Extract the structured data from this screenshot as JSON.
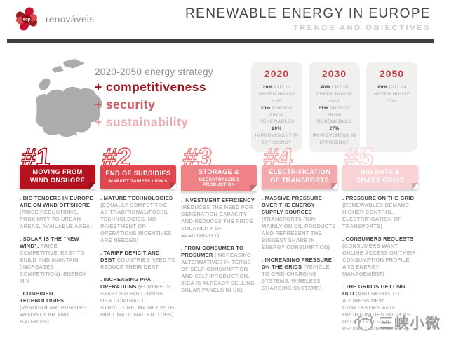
{
  "header": {
    "brand": "edp",
    "brand_name": "renováveis",
    "title": "RENEWABLE ENERGY IN EUROPE",
    "subtitle": "TRENDS AND OBIECTIVES"
  },
  "strategy": {
    "heading": "2020-2050 energy strategy",
    "goals": [
      {
        "label": "+ competitiveness",
        "color": "#9f1620"
      },
      {
        "label": "+ security",
        "color": "#cf5b62"
      },
      {
        "label": "+ sustainability",
        "color": "#edabaf"
      }
    ]
  },
  "milestones": [
    {
      "year": "2020",
      "facts": [
        {
          "value": "20%",
          "text": " CUT IN GREEN HOUSE GAS"
        },
        {
          "value": "20%",
          "text": " ENERGY FROM RENEWABLES"
        },
        {
          "value": "20%",
          "text": " IMPROVEMENT IN EFFICIENCY"
        }
      ]
    },
    {
      "year": "2030",
      "facts": [
        {
          "value": "40%",
          "text": " CUT IN GREEN HOUSE GAS"
        },
        {
          "value": "27%",
          "text": " ENERGY FROM RENEWABLES"
        },
        {
          "value": "27%",
          "text": " IMPROVEMENT IN EFFICIENCY"
        }
      ]
    },
    {
      "year": "2050",
      "facts": [
        {
          "value": "80%",
          "text": " CUT IN GREEN HOUSE GAS"
        }
      ]
    }
  ],
  "trends": [
    {
      "number": "#1",
      "color": "#b5121f",
      "title_lines": [
        "MOVING FROM",
        "WIND ONSHORE"
      ],
      "subtitle_lines": [],
      "items": [
        {
          "lead": ". BIG TENDERS IN EUROPE ARE ON WIND OFFSHORE ",
          "rest": "(PRICE REDUCTIONS, PROXIMITY TO URBAN AREAS, AVAILABLE AREA)"
        },
        {
          "lead": ". SOLAR IS THE “NEW WIND”. ",
          "rest": "PRICE COMPETITIVE, EASY TO BUILD AND MAINTAIN (INCREASES COMPETITION), ENERGY MIX"
        },
        {
          "lead": ". COMBINED TECHNOLOGIES ",
          "rest": "(WIND/SOLAR; PUMPING WIND/SOLAR AND BATERIES)"
        }
      ]
    },
    {
      "number": "#2",
      "color": "#e0474f",
      "title_lines": [
        "END OF SUBSIDIES"
      ],
      "subtitle_lines": [
        "MARKET TARIFFS / PPAS"
      ],
      "items": [
        {
          "lead": ". MATURE TECHNOLOGIES ",
          "rest": "(EQUALLY COMPETITIVE AS TRADITIONAL/FOSSIL TECHNOLOGIES. NO INVESTMENT OR OPERATIONS INCENTIVES ARE NEEDED)"
        },
        {
          "lead": ". TARIFF DEFICIT AND DEBT ",
          "rest": "COUNTRIES NEED TO REDUCE THEIR DEBT"
        },
        {
          "lead": ". INCREASING PPA OPERATIONS ",
          "rest": "(EUROPE IS STARTING FOLLOWING USA CONTRACT STRUCTURE, MAINLY WITH MULTINATIONAL ENTITIES)"
        }
      ]
    },
    {
      "number": "#3",
      "color": "#ee8287",
      "title_lines": [
        "STORAGE &"
      ],
      "subtitle_lines": [
        "DECENTRALIZED PRODUCTION"
      ],
      "items": [
        {
          "lead": ". INVESTMENT EFFICIENCY ",
          "rest": "(REDUCES THE NEED FOR GENERATION CAPACITY AND REDUCES THE PRICE VOLATILITY OF ELECTRICITY)"
        },
        {
          "lead": ". FROM CONSUMER TO PROSUMER ",
          "rest": "(INCREASING ALTERNATIVES IN TERMS OF SELF-CONSUMPTION AND SELF-PRODUCTION. IKEA IS ALREADY SELLING SOLAR PANELS IN UK)"
        }
      ]
    },
    {
      "number": "#4",
      "color": "#f3aaad",
      "title_lines": [
        "ELECTRIFICATION",
        "OF TRANSPORTS"
      ],
      "subtitle_lines": [],
      "items": [
        {
          "lead": ". MASSIVE PRESSURE OVER THE ENERGY SUPPLY SOURCES ",
          "rest": "(TRANSPORTS RUN MAINLY ON OIL PRODUCTS AND REPRESENT THE BIGGEST SHARE IN ENERGY CONSUMPTION)"
        },
        {
          "lead": ". INCREASING PRESSURE ON THE GRIDS ",
          "rest": "(VEHICLE TO GRID CHARGING SYSTEMS, WIRELESS CHARGING SYSTEMS)"
        }
      ]
    },
    {
      "number": "#5",
      "color": "#f8d2d4",
      "title_lines": [
        "BIG DATA &",
        "SMART  GRIDS"
      ],
      "subtitle_lines": [],
      "items": [
        {
          "lead": ". PRESSURE ON THE GRID ",
          "rest": "(RENEWABLES DEMAND HIGHER CONTROL, ELECTRIFICATION OF TRANSPORTS)"
        },
        {
          "lead": ". CONSUMERS REQUESTS ",
          "rest": "(CONSUMERS WANT ONLINE ACCESS ON THEIR CONSUMPTION PROFILE AND ENERGY MANAGEMENT)"
        },
        {
          "lead": ". THE GRID IS GETTING OLD ",
          "rest": "(AND NEEDS TO ADDRESS NEW CHALLENGES AND OPORTUNITIES SUCH AS DECENTRALIZED PRODUCTION AND RES)"
        }
      ]
    }
  ],
  "watermark": {
    "text": "三峡小微"
  }
}
